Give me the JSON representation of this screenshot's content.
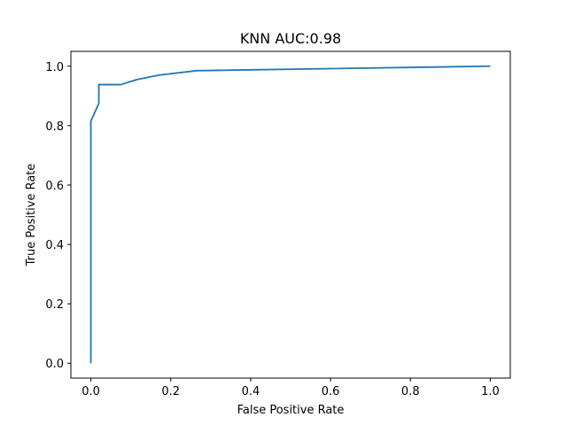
{
  "chart_data": {
    "type": "line",
    "title": "KNN AUC:0.98",
    "xlabel": "False Positive Rate",
    "ylabel": "True Positive Rate",
    "xlim": [
      -0.05,
      1.05
    ],
    "ylim": [
      -0.05,
      1.05
    ],
    "x_ticks": [
      0.0,
      0.2,
      0.4,
      0.6,
      0.8,
      1.0
    ],
    "y_ticks": [
      0.0,
      0.2,
      0.4,
      0.6,
      0.8,
      1.0
    ],
    "x_tick_labels": [
      "0.0",
      "0.2",
      "0.4",
      "0.6",
      "0.8",
      "1.0"
    ],
    "y_tick_labels": [
      "0.0",
      "0.2",
      "0.4",
      "0.6",
      "0.8",
      "1.0"
    ],
    "grid": false,
    "line_color": "#1f77b4",
    "series": [
      {
        "x": [
          0.0,
          0.0,
          0.0,
          0.02,
          0.02,
          0.02,
          0.075,
          0.115,
          0.17,
          0.265,
          1.0
        ],
        "y": [
          0.0,
          0.81,
          0.815,
          0.875,
          0.885,
          0.938,
          0.938,
          0.955,
          0.97,
          0.985,
          1.0
        ]
      }
    ]
  }
}
